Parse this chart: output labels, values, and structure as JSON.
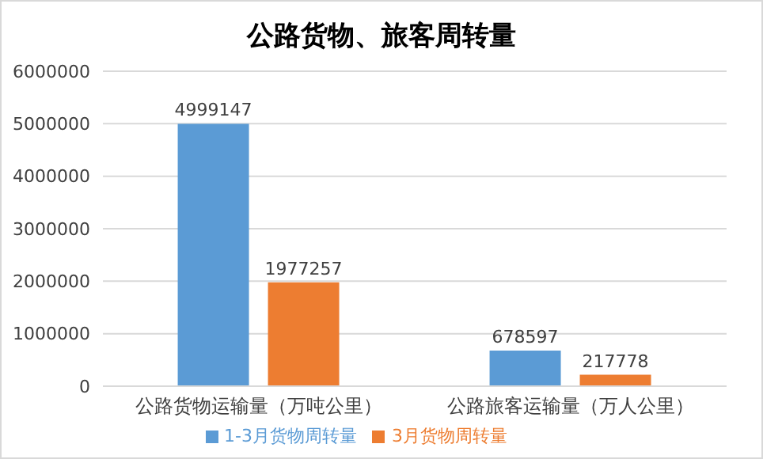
{
  "chart_data": {
    "type": "bar",
    "title": "公路货物、旅客周转量",
    "categories": [
      "公路货物运输量（万吨公里）",
      "公路旅客运输量（万人公里）"
    ],
    "series": [
      {
        "name": "1-3月货物周转量",
        "color": "#5b9bd5",
        "values": [
          4999147,
          678597
        ]
      },
      {
        "name": "3月货物周转量",
        "color": "#ed7d31",
        "values": [
          1977257,
          217778
        ]
      }
    ],
    "ylim": [
      0,
      6000000
    ],
    "yticks": [
      0,
      1000000,
      2000000,
      3000000,
      4000000,
      5000000,
      6000000
    ],
    "grid": "y",
    "legend": "bottom",
    "data_labels": true
  }
}
